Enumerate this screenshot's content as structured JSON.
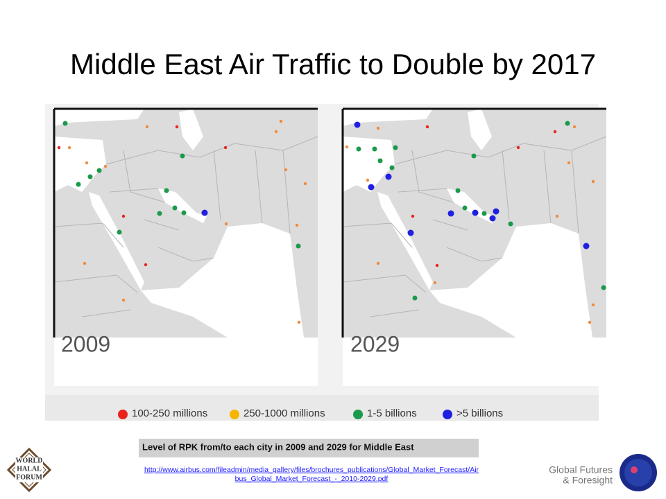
{
  "header": {
    "title": "Middle East Air Traffic to Double by 2017"
  },
  "maps": [
    {
      "year": "2009"
    },
    {
      "year": "2029"
    }
  ],
  "legend": [
    {
      "label": "100-250 millions"
    },
    {
      "label": "250-1000 millions"
    },
    {
      "label": "1-5 billions"
    },
    {
      "label": ">5 billions"
    }
  ],
  "caption": "Level of RPK from/to each city in 2009 and 2029 for Middle East",
  "source": {
    "lines": [
      "http://www.airbus.com/fileadmin/media_gallery/files/brochures_publications/Global_Market_Forecast/Air",
      "bus_Global_Market_Forecast_-_2010-2029.pdf"
    ]
  },
  "logo": {
    "lines": [
      "WORLD",
      "HALAL",
      "FORUM"
    ]
  },
  "brand": {
    "lines": [
      "Global Futures",
      "& Foresight"
    ]
  }
}
